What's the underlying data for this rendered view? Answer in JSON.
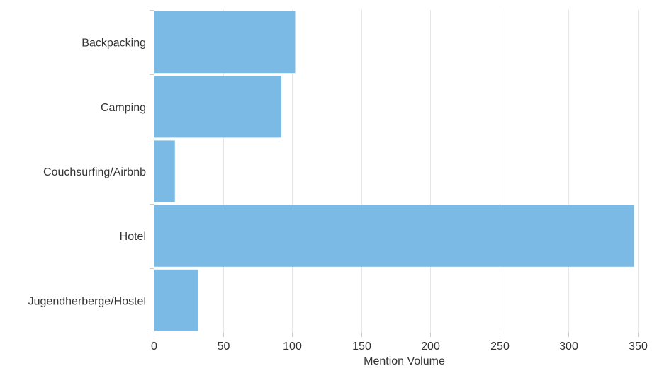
{
  "chart_data": {
    "type": "bar",
    "orientation": "horizontal",
    "title": "",
    "xlabel": "Mention Volume",
    "ylabel": "",
    "categories": [
      "Backpacking",
      "Camping",
      "Couchsurfing/Airbnb",
      "Hotel",
      "Jugendherberge/Hostel"
    ],
    "values": [
      102,
      92,
      15,
      347,
      32
    ],
    "xlim": [
      0,
      350
    ],
    "xticks": [
      0,
      50,
      100,
      150,
      200,
      250,
      300,
      350
    ],
    "grid": true,
    "legend": "none",
    "bar_color": "#7cbae6"
  }
}
